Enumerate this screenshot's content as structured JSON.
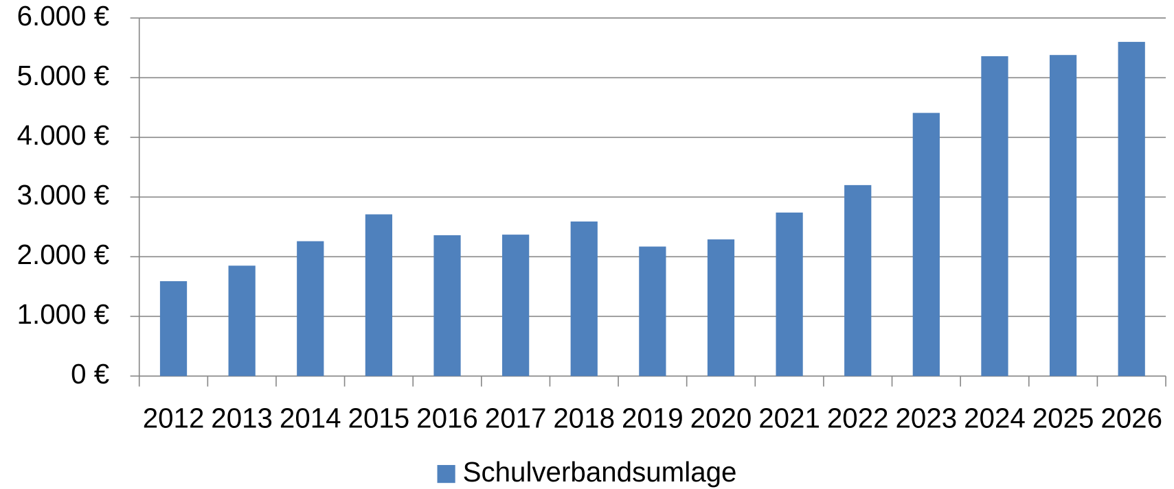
{
  "chart_data": {
    "type": "bar",
    "categories": [
      "2012",
      "2013",
      "2014",
      "2015",
      "2016",
      "2017",
      "2018",
      "2019",
      "2020",
      "2021",
      "2022",
      "2023",
      "2024",
      "2025",
      "2026"
    ],
    "series": [
      {
        "name": "Schulverbandsumlage",
        "color": "#4f81bd",
        "values": [
          1590,
          1850,
          2260,
          2710,
          2360,
          2370,
          2590,
          2170,
          2290,
          2740,
          3200,
          4410,
          5360,
          5380,
          5600
        ]
      }
    ],
    "ylim": [
      0,
      6000
    ],
    "yticks": [
      {
        "value": 0,
        "label": "0 €"
      },
      {
        "value": 1000,
        "label": "1.000 €"
      },
      {
        "value": 2000,
        "label": "2.000 €"
      },
      {
        "value": 3000,
        "label": "3.000 €"
      },
      {
        "value": 4000,
        "label": "4.000 €"
      },
      {
        "value": 5000,
        "label": "5.000 €"
      },
      {
        "value": 6000,
        "label": "6.000 €"
      }
    ],
    "grid": true,
    "legend": "bottom"
  }
}
